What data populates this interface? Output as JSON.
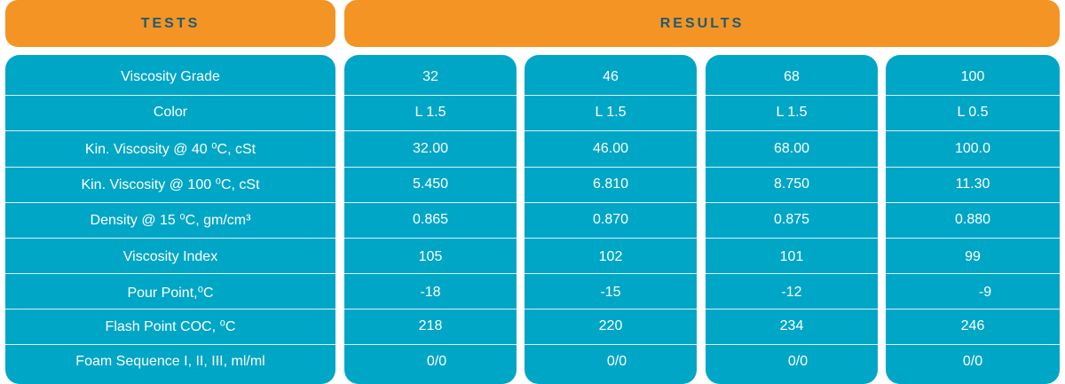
{
  "header": {
    "tests_label": "TESTS",
    "results_label": "RESULTS"
  },
  "colors": {
    "header_bg": "#f39424",
    "header_text": "#1e5a74",
    "cell_bg": "#00a6c6",
    "cell_text": "#ffffff"
  },
  "tests": [
    "Viscosity Grade",
    "Color",
    "Kin. Viscosity @ 40 ⁰C, cSt",
    "Kin. Viscosity @ 100 ⁰C, cSt",
    "Density @ 15 ⁰C, gm/cm³",
    "Viscosity Index",
    "Pour Point,⁰C",
    "Flash Point COC, ⁰C",
    "Foam Sequence I, II, III, ml/ml"
  ],
  "results": {
    "g32": [
      "32",
      "L 1.5",
      "32.00",
      "5.450",
      "0.865",
      "105",
      "-18",
      "218",
      "0/0"
    ],
    "g46": [
      "46",
      "L 1.5",
      "46.00",
      "6.810",
      "0.870",
      "102",
      "-15",
      "220",
      "0/0"
    ],
    "g68": [
      "68",
      "L 1.5",
      "68.00",
      "8.750",
      "0.875",
      "101",
      "-12",
      "234",
      "0/0"
    ],
    "g100": [
      "100",
      "L 0.5",
      "100.0",
      "11.30",
      "0.880",
      "99",
      "-9",
      "246",
      "0/0"
    ]
  }
}
